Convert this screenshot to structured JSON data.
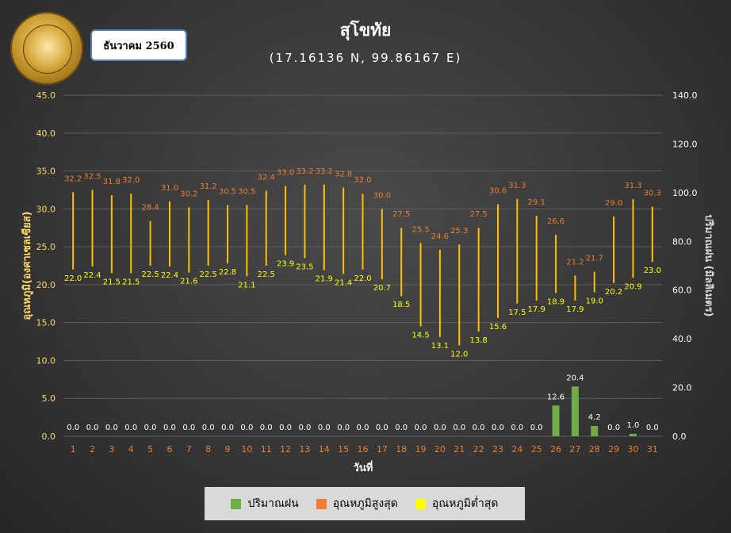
{
  "header": {
    "title": "สุโขทัย",
    "subtitle": "(17.16136 N, 99.86167 E)",
    "month_label": "ธันวาคม 2560",
    "logo_text": "กรมอุตุนิยมวิทยา METEOROLOGICAL DEPARTMENT"
  },
  "legend": {
    "rain": "ปริมาณฝน",
    "tmax": "อุณหภูมิสูงสุด",
    "tmin": "อุณหภูมิต่ำสุด"
  },
  "colors": {
    "rain": "#70ad47",
    "tmax": "#ed7d31",
    "tmin": "#ffff00",
    "bar": "#ffc000",
    "axis_left": "#ffd966"
  },
  "chart_data": {
    "type": "bar",
    "title": "สุโขทัย",
    "subtitle": "(17.16136 N, 99.86167 E)",
    "xlabel": "วันที่",
    "ylabel_left": "อุณหภูมิ(องศาเซลเซียส)",
    "ylabel_right": "ปริมาณฝน (มิลลิเมตร)",
    "categories": [
      "1",
      "2",
      "3",
      "4",
      "5",
      "6",
      "7",
      "8",
      "9",
      "10",
      "11",
      "12",
      "13",
      "14",
      "15",
      "16",
      "17",
      "18",
      "19",
      "20",
      "21",
      "22",
      "23",
      "24",
      "25",
      "26",
      "27",
      "28",
      "29",
      "30",
      "31"
    ],
    "ylim_left": [
      0,
      45
    ],
    "yticks_left": [
      "0.0",
      "5.0",
      "10.0",
      "15.0",
      "20.0",
      "25.0",
      "30.0",
      "35.0",
      "40.0",
      "45.0"
    ],
    "ylim_right": [
      0,
      140
    ],
    "yticks_right": [
      "0.0",
      "20.0",
      "40.0",
      "60.0",
      "80.0",
      "100.0",
      "120.0",
      "140.0"
    ],
    "series": [
      {
        "name": "ปริมาณฝน",
        "axis": "right",
        "values": [
          0.0,
          0.0,
          0.0,
          0.0,
          0.0,
          0.0,
          0.0,
          0.0,
          0.0,
          0.0,
          0.0,
          0.0,
          0.0,
          0.0,
          0.0,
          0.0,
          0.0,
          0.0,
          0.0,
          0.0,
          0.0,
          0.0,
          0.0,
          0.0,
          0.0,
          12.6,
          20.4,
          4.2,
          0.0,
          1.0,
          0.0
        ]
      },
      {
        "name": "อุณหภูมิสูงสุด",
        "axis": "left",
        "values": [
          32.2,
          32.5,
          31.8,
          32.0,
          28.4,
          31.0,
          30.2,
          31.2,
          30.5,
          30.5,
          32.4,
          33.0,
          33.2,
          33.2,
          32.8,
          32.0,
          30.0,
          27.5,
          25.5,
          24.6,
          25.3,
          27.5,
          30.6,
          31.3,
          29.1,
          26.6,
          21.2,
          21.7,
          29.0,
          31.3,
          30.3
        ]
      },
      {
        "name": "อุณหภูมิต่ำสุด",
        "axis": "left",
        "values": [
          22.0,
          22.4,
          21.5,
          21.5,
          22.5,
          22.4,
          21.6,
          22.5,
          22.8,
          21.1,
          22.5,
          23.9,
          23.5,
          21.9,
          21.4,
          22.0,
          20.7,
          18.5,
          14.5,
          13.1,
          12.0,
          13.8,
          15.6,
          17.5,
          17.9,
          18.9,
          17.9,
          19.0,
          20.2,
          20.9,
          23.0
        ]
      }
    ],
    "grid": true,
    "legend_position": "bottom"
  }
}
